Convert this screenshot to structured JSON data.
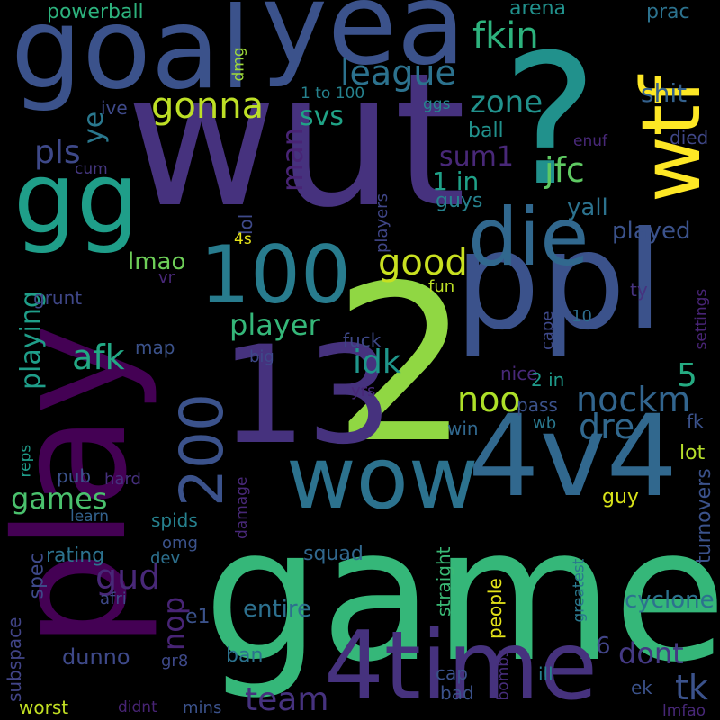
{
  "words": [
    {
      "text": "game",
      "color": "#35b779"
    },
    {
      "text": "2",
      "color": "#90d743"
    },
    {
      "text": "wut",
      "color": "#46327e"
    },
    {
      "text": "play",
      "color": "#440154"
    },
    {
      "text": "?",
      "color": "#21918c"
    },
    {
      "text": "ppl",
      "color": "#3b528b"
    },
    {
      "text": "goal",
      "color": "#3b528b"
    },
    {
      "text": "yea",
      "color": "#3b528b"
    },
    {
      "text": "13",
      "color": "#46327e"
    },
    {
      "text": "4v4",
      "color": "#31688e"
    },
    {
      "text": "4time",
      "color": "#46327e"
    },
    {
      "text": "wtf",
      "color": "#fde725"
    },
    {
      "text": "wow",
      "color": "#2c728e"
    },
    {
      "text": "100",
      "color": "#287c8e"
    },
    {
      "text": "die",
      "color": "#31688e"
    },
    {
      "text": "gg",
      "color": "#1f9e89"
    },
    {
      "text": "200",
      "color": "#3b528b"
    },
    {
      "text": "fkin",
      "color": "#2db27d"
    },
    {
      "text": "league",
      "color": "#2c728e"
    },
    {
      "text": "gonna",
      "color": "#bddf26"
    },
    {
      "text": "good",
      "color": "#c8e020"
    },
    {
      "text": "zone",
      "color": "#21918c"
    },
    {
      "text": "svs",
      "color": "#20a386"
    },
    {
      "text": "man",
      "color": "#482475"
    },
    {
      "text": "pls",
      "color": "#3e4989"
    },
    {
      "text": "ye",
      "color": "#2a788e"
    },
    {
      "text": "sum1",
      "color": "#482878"
    },
    {
      "text": "jfc",
      "color": "#5ec962"
    },
    {
      "text": "1 in",
      "color": "#1fa188"
    },
    {
      "text": "guys",
      "color": "#26828e"
    },
    {
      "text": "yall",
      "color": "#2c728e"
    },
    {
      "text": "played",
      "color": "#3b528b"
    },
    {
      "text": "lmao",
      "color": "#6ece58"
    },
    {
      "text": "player",
      "color": "#35b779"
    },
    {
      "text": "playing",
      "color": "#1f9e89"
    },
    {
      "text": "afk",
      "color": "#22a884"
    },
    {
      "text": "idk",
      "color": "#1f968b"
    },
    {
      "text": "5",
      "color": "#25ab82"
    },
    {
      "text": "noo",
      "color": "#ade028"
    },
    {
      "text": "nockm",
      "color": "#32658e"
    },
    {
      "text": "dre",
      "color": "#31688e"
    },
    {
      "text": "games",
      "color": "#4ac16d"
    },
    {
      "text": "gud",
      "color": "#482878"
    },
    {
      "text": "nop",
      "color": "#482475"
    },
    {
      "text": "dont",
      "color": "#443983"
    },
    {
      "text": "team",
      "color": "#46327e"
    },
    {
      "text": "tk",
      "color": "#3b528b"
    },
    {
      "text": "6",
      "color": "#414487"
    },
    {
      "text": "powerball",
      "color": "#2db27d"
    },
    {
      "text": "arena",
      "color": "#21918c"
    },
    {
      "text": "prac",
      "color": "#2c728e"
    },
    {
      "text": "shit",
      "color": "#34618d"
    },
    {
      "text": "dmg",
      "color": "#9fda3a"
    },
    {
      "text": "1 to 100",
      "color": "#26828e"
    },
    {
      "text": "ggs",
      "color": "#25858e"
    },
    {
      "text": "ive",
      "color": "#3e4989"
    },
    {
      "text": "ball",
      "color": "#21918c"
    },
    {
      "text": "enuf",
      "color": "#482878"
    },
    {
      "text": "died",
      "color": "#3f4788"
    },
    {
      "text": "cum",
      "color": "#453781"
    },
    {
      "text": "players",
      "color": "#404688"
    },
    {
      "text": "lol",
      "color": "#3e4989"
    },
    {
      "text": "4s",
      "color": "#e5e419"
    },
    {
      "text": "grunt",
      "color": "#3f4788"
    },
    {
      "text": "vr",
      "color": "#482878"
    },
    {
      "text": "fun",
      "color": "#bddf26"
    },
    {
      "text": "ty",
      "color": "#46327e"
    },
    {
      "text": "settings",
      "color": "#482475"
    },
    {
      "text": "10",
      "color": "#2e6e8e"
    },
    {
      "text": "cape",
      "color": "#3e4989"
    },
    {
      "text": "map",
      "color": "#3b528b"
    },
    {
      "text": "big",
      "color": "#3e4989"
    },
    {
      "text": "fuck",
      "color": "#3e4989"
    },
    {
      "text": "nice",
      "color": "#482878"
    },
    {
      "text": "yrs",
      "color": "#482878"
    },
    {
      "text": "2 in",
      "color": "#1f9a8a"
    },
    {
      "text": "pass",
      "color": "#3b528b"
    },
    {
      "text": "wb",
      "color": "#2a788e"
    },
    {
      "text": "win",
      "color": "#31688e"
    },
    {
      "text": "fk",
      "color": "#3b528b"
    },
    {
      "text": "lot",
      "color": "#b5de2b"
    },
    {
      "text": "reps",
      "color": "#1e9c89"
    },
    {
      "text": "pub",
      "color": "#3b528b"
    },
    {
      "text": "hard",
      "color": "#46307e"
    },
    {
      "text": "damage",
      "color": "#482878"
    },
    {
      "text": "turnovers",
      "color": "#3b528b"
    },
    {
      "text": "guy",
      "color": "#d8e219"
    },
    {
      "text": "learn",
      "color": "#33628d"
    },
    {
      "text": "spids",
      "color": "#26818e"
    },
    {
      "text": "omg",
      "color": "#3b528b"
    },
    {
      "text": "rating",
      "color": "#2c728e"
    },
    {
      "text": "dev",
      "color": "#2d708e"
    },
    {
      "text": "squad",
      "color": "#31688e"
    },
    {
      "text": "spec",
      "color": "#3e4989"
    },
    {
      "text": "straight",
      "color": "#3aba76"
    },
    {
      "text": "greatest",
      "color": "#2a788e"
    },
    {
      "text": "afri",
      "color": "#3e4989"
    },
    {
      "text": "e1",
      "color": "#3b528b"
    },
    {
      "text": "entire",
      "color": "#2d708e"
    },
    {
      "text": "people",
      "color": "#e5e419"
    },
    {
      "text": "cyclone",
      "color": "#2c728e"
    },
    {
      "text": "subspace",
      "color": "#414487"
    },
    {
      "text": "dunno",
      "color": "#3e4989"
    },
    {
      "text": "gr8",
      "color": "#3e4989"
    },
    {
      "text": "ban",
      "color": "#2c728e"
    },
    {
      "text": "ill",
      "color": "#26818e"
    },
    {
      "text": "bombs",
      "color": "#472d7b"
    },
    {
      "text": "cap",
      "color": "#3b528b"
    },
    {
      "text": "bad",
      "color": "#3b528b"
    },
    {
      "text": "ek",
      "color": "#3b528b"
    },
    {
      "text": "worst",
      "color": "#c2df23"
    },
    {
      "text": "didnt",
      "color": "#482475"
    },
    {
      "text": "mins",
      "color": "#3b528b"
    },
    {
      "text": "lmfao",
      "color": "#482878"
    }
  ]
}
